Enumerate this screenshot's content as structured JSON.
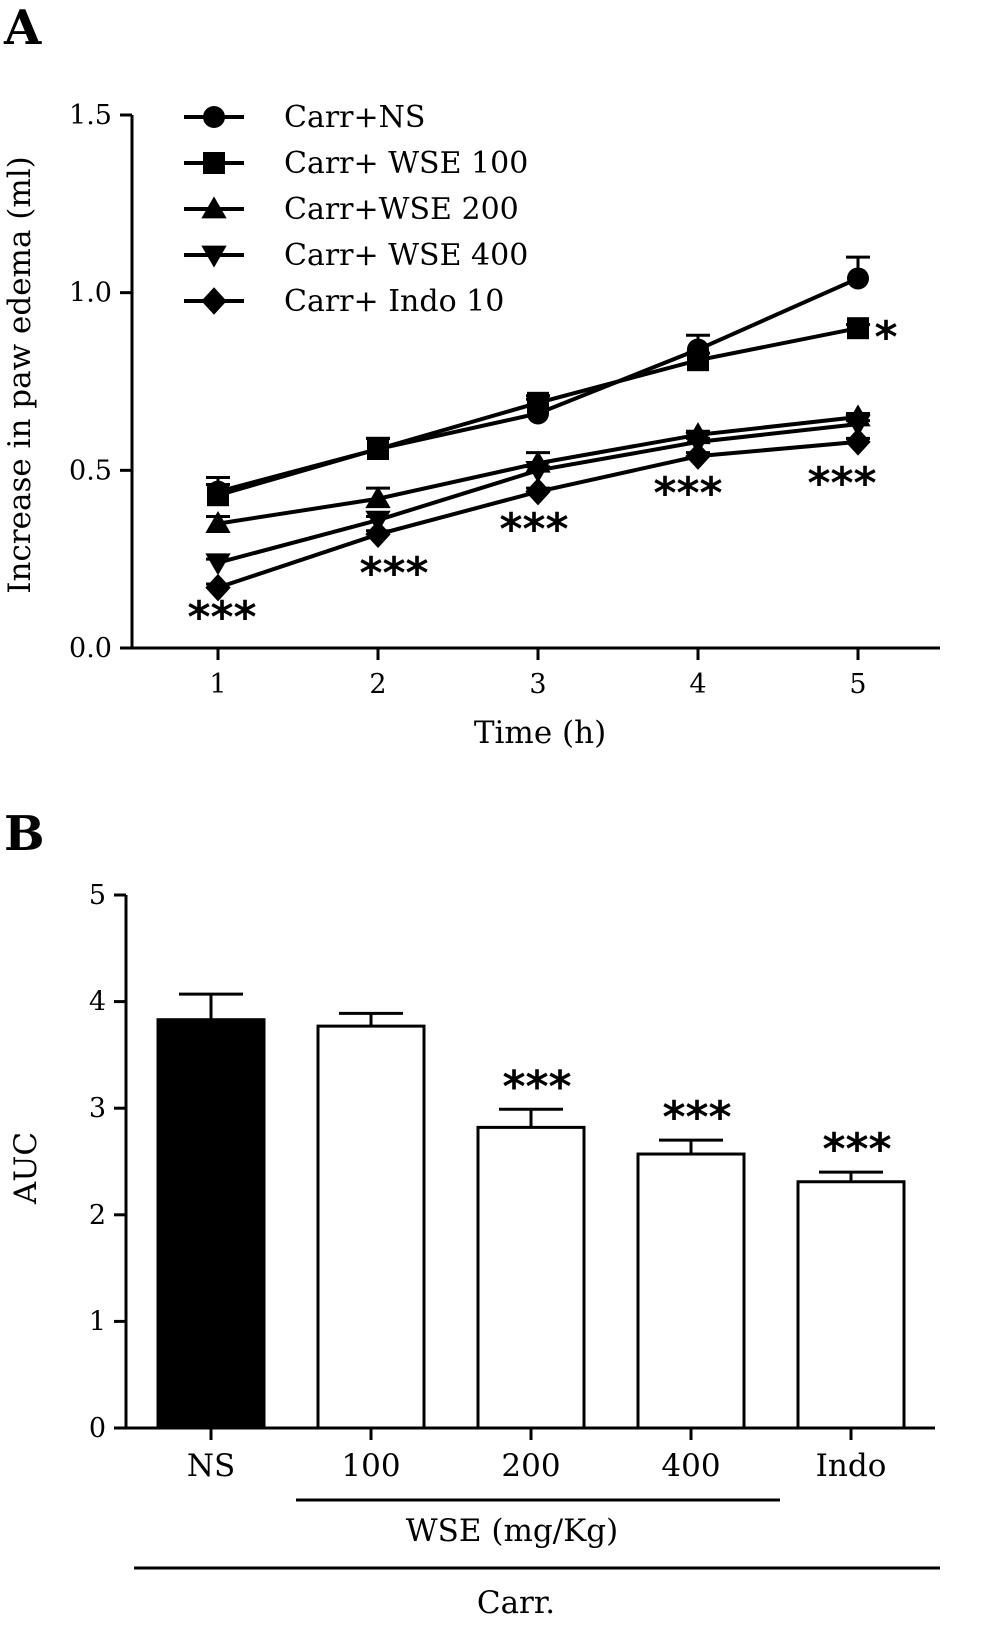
{
  "panels": {
    "a_label": "A",
    "b_label": "B"
  },
  "chart_data": [
    {
      "type": "line",
      "panel": "A",
      "xlabel": "Time (h)",
      "ylabel": "Increase in paw edema (ml)",
      "x": [
        1,
        2,
        3,
        4,
        5
      ],
      "xticks": [
        "1",
        "2",
        "3",
        "4",
        "5"
      ],
      "ylim": [
        0,
        1.5
      ],
      "yticks": [
        "0.0",
        "0.5",
        "1.0",
        "1.5"
      ],
      "legend_position": "top-left",
      "series": [
        {
          "name": "Carr+NS",
          "marker": "circle",
          "values": [
            0.44,
            0.56,
            0.66,
            0.84,
            1.04
          ],
          "errors": [
            0.04,
            0.03,
            0.04,
            0.04,
            0.06
          ]
        },
        {
          "name": "Carr+ WSE 100",
          "marker": "square",
          "values": [
            0.43,
            0.56,
            0.69,
            0.81,
            0.9
          ],
          "errors": [
            0.03,
            0.03,
            0.02,
            0.02,
            0.01
          ]
        },
        {
          "name": "Carr+WSE 200",
          "marker": "triangle-up",
          "values": [
            0.35,
            0.42,
            0.52,
            0.6,
            0.65
          ],
          "errors": [
            0.02,
            0.03,
            0.03,
            0.01,
            0.01
          ]
        },
        {
          "name": "Carr+ WSE 400",
          "marker": "triangle-down",
          "values": [
            0.24,
            0.36,
            0.5,
            0.58,
            0.63
          ],
          "errors": [
            0.01,
            0.01,
            0.01,
            0.01,
            0.01
          ]
        },
        {
          "name": "Carr+ Indo 10",
          "marker": "diamond",
          "values": [
            0.17,
            0.32,
            0.44,
            0.54,
            0.58
          ],
          "errors": [
            0.01,
            0.01,
            0.01,
            0.01,
            0.01
          ]
        }
      ],
      "annotations": [
        {
          "x": 1,
          "text": "***"
        },
        {
          "x": 2,
          "text": "***"
        },
        {
          "x": 3,
          "text": "***"
        },
        {
          "x": 4,
          "text": "***"
        },
        {
          "x": 5,
          "text": "***"
        },
        {
          "x": 5,
          "text": "*"
        }
      ]
    },
    {
      "type": "bar",
      "panel": "B",
      "ylabel": "AUC",
      "categories": [
        "NS",
        "100",
        "200",
        "400",
        "Indo"
      ],
      "values": [
        3.83,
        3.77,
        2.82,
        2.57,
        2.31
      ],
      "errors": [
        0.24,
        0.12,
        0.17,
        0.13,
        0.09
      ],
      "fills": [
        "#000000",
        "#ffffff",
        "#ffffff",
        "#ffffff",
        "#ffffff"
      ],
      "ylim": [
        0,
        5
      ],
      "yticks": [
        "0",
        "1",
        "2",
        "3",
        "4",
        "5"
      ],
      "annotations": [
        "",
        "",
        "***",
        "***",
        "***"
      ],
      "group_labels": {
        "wse": "WSE (mg/Kg)",
        "carr": "Carr."
      }
    }
  ]
}
